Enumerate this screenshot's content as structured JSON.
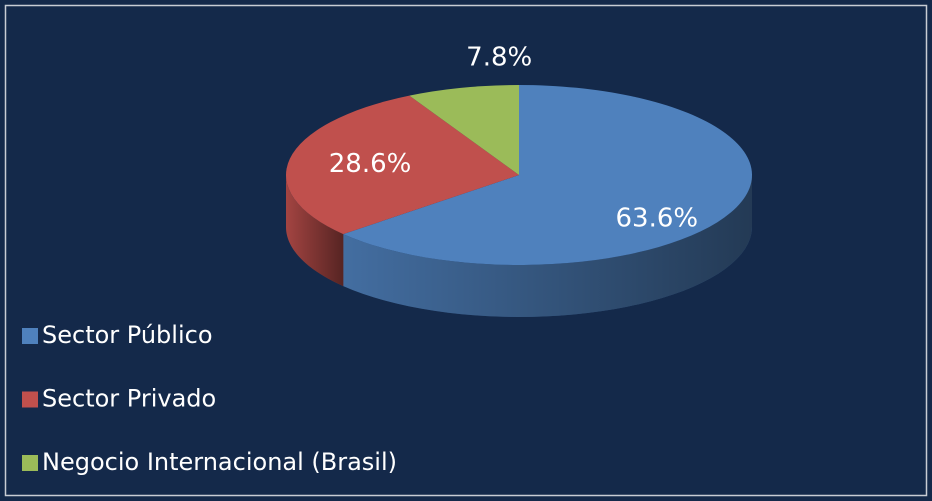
{
  "chart_data": {
    "type": "pie",
    "categories": [
      "Sector Público",
      "Sector Privado",
      "Negocio Internacional (Brasil)"
    ],
    "values": [
      63.6,
      28.6,
      7.8
    ],
    "value_labels": [
      "63.6%",
      "28.6%",
      "7.8%"
    ],
    "colors": [
      "#4f81bd",
      "#c0504d",
      "#9bbb59"
    ]
  }
}
